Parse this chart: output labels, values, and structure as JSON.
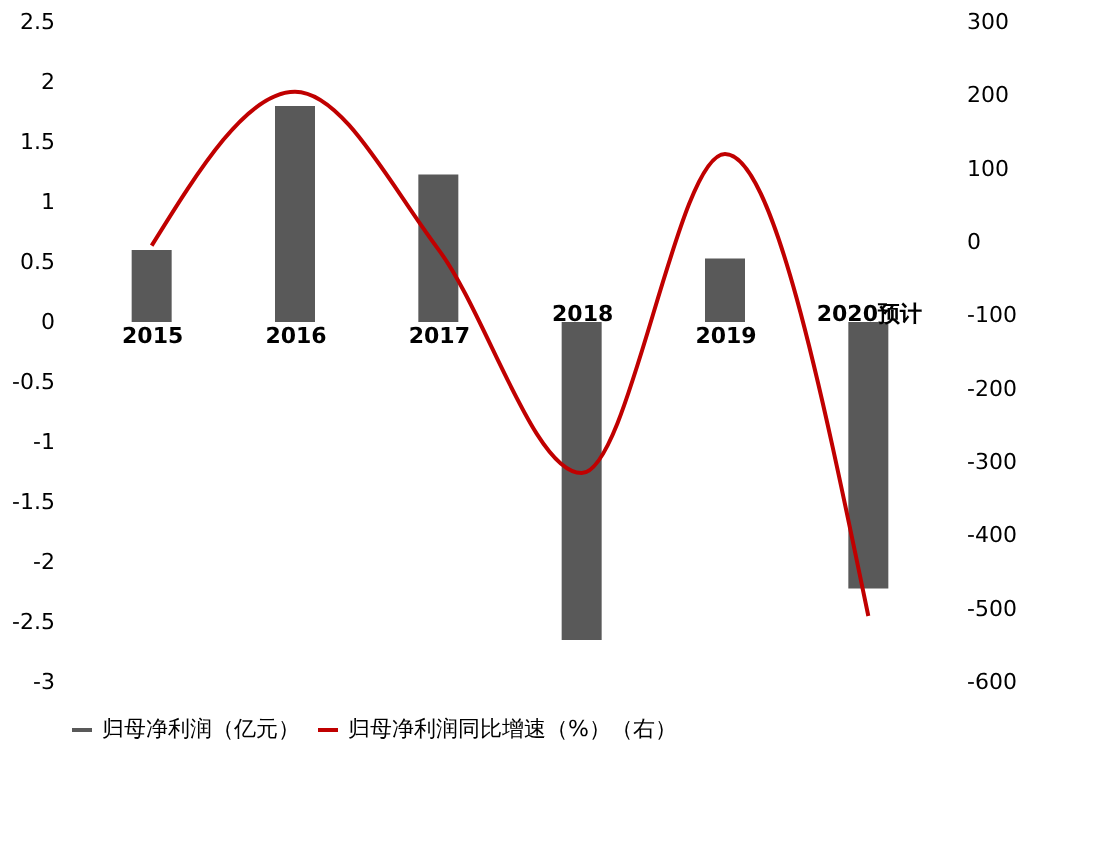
{
  "chart_data": {
    "type": "bar",
    "categories": [
      "2015",
      "2016",
      "2017",
      "2018",
      "2019",
      "2020预计"
    ],
    "series": [
      {
        "name": "归母净利润（亿元）",
        "color": "#595959",
        "values": [
          0.6,
          1.8,
          1.23,
          -2.65,
          0.53,
          -2.22
        ]
      },
      {
        "name": "归母净利润同比增速（%）（右）",
        "type": "line",
        "axis": "y2",
        "color": "#c00000",
        "values": [
          -5,
          205,
          -10,
          -315,
          120,
          -510
        ]
      }
    ],
    "ylim": [
      -3,
      2.5
    ],
    "yticks": [
      -3,
      -2.5,
      -2,
      -1.5,
      -1,
      -0.5,
      0,
      0.5,
      1,
      1.5,
      2,
      2.5
    ],
    "y2lim": [
      -600,
      300
    ],
    "y2ticks": [
      -600,
      -500,
      -400,
      -300,
      -200,
      -100,
      0,
      100,
      200,
      300
    ],
    "legend": "bottom",
    "grid": false,
    "marker": "none",
    "line_style": "solid"
  }
}
